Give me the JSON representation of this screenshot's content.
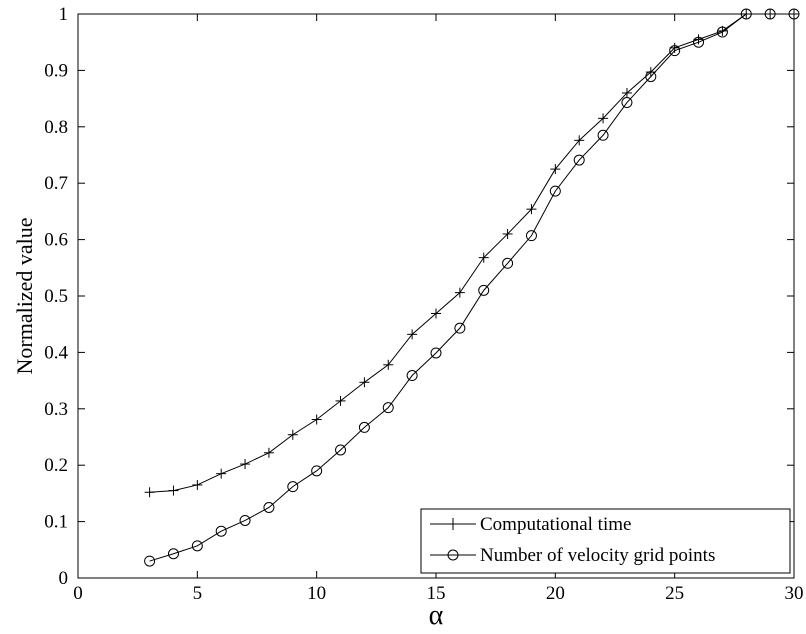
{
  "chart_data": {
    "type": "line",
    "xlabel": "α",
    "ylabel": "Normalized value",
    "xlim": [
      0,
      30
    ],
    "ylim": [
      0,
      1
    ],
    "x_ticks": [
      "0",
      "5",
      "10",
      "15",
      "20",
      "25",
      "30"
    ],
    "y_ticks": [
      "0",
      "0.1",
      "0.2",
      "0.3",
      "0.4",
      "0.5",
      "0.6",
      "0.7",
      "0.8",
      "0.9",
      "1"
    ],
    "grid": false,
    "legend_position": "bottom-right",
    "x": [
      3,
      4,
      5,
      6,
      7,
      8,
      9,
      10,
      11,
      12,
      13,
      14,
      15,
      16,
      17,
      18,
      19,
      20,
      21,
      22,
      23,
      24,
      25,
      26,
      27,
      28,
      29,
      30
    ],
    "series": [
      {
        "name": "Computational time",
        "marker": "plus",
        "values": [
          0.152,
          0.155,
          0.165,
          0.185,
          0.202,
          0.222,
          0.254,
          0.281,
          0.314,
          0.347,
          0.378,
          0.432,
          0.469,
          0.506,
          0.568,
          0.61,
          0.654,
          0.725,
          0.776,
          0.815,
          0.86,
          0.897,
          0.94,
          0.955,
          0.97,
          1.0,
          1.0,
          1.0
        ]
      },
      {
        "name": "Number of velocity grid points",
        "marker": "circle",
        "values": [
          0.03,
          0.043,
          0.057,
          0.083,
          0.102,
          0.125,
          0.162,
          0.19,
          0.227,
          0.267,
          0.302,
          0.359,
          0.399,
          0.443,
          0.51,
          0.558,
          0.607,
          0.686,
          0.741,
          0.785,
          0.843,
          0.889,
          0.935,
          0.95,
          0.968,
          1.0,
          1.0,
          1.0
        ]
      }
    ]
  }
}
